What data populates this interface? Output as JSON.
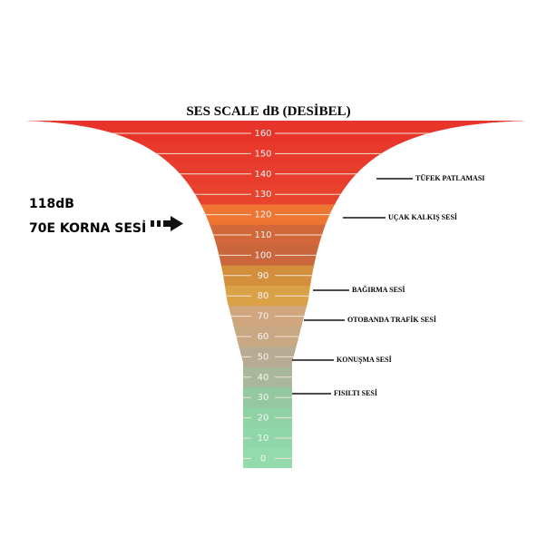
{
  "title": "SES SCALE  dB (DESİBEL)",
  "levels": [
    160,
    150,
    140,
    130,
    120,
    110,
    100,
    90,
    80,
    70,
    60,
    50,
    40,
    30,
    20,
    10,
    0
  ],
  "annotations": [
    "TÜFEK PATLAMASI",
    "UÇAK KALKIŞ SESİ",
    "BAĞIRMA SESİ",
    "OTOBANDA TRAFİK SESİ",
    "KONUŞMA SESİ",
    "FISILTI SESİ"
  ],
  "callout": {
    "value": "118dB",
    "label": "70E KORNA SESİ"
  }
}
